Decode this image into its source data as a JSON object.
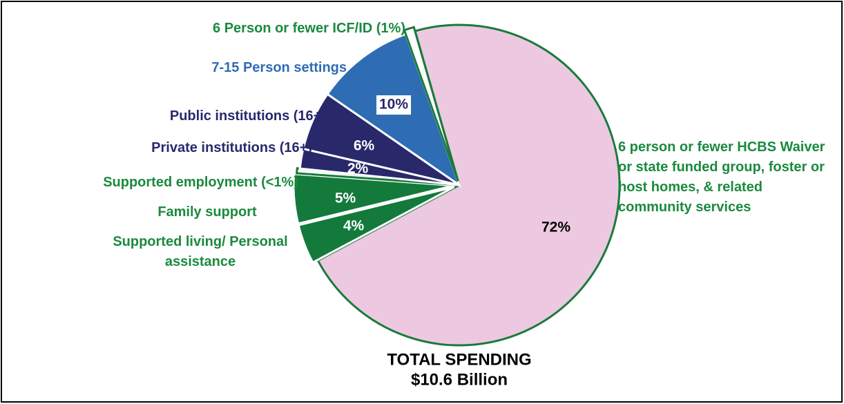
{
  "chart_data": {
    "type": "pie",
    "title": "TOTAL SPENDING",
    "subtitle": "$10.6 Billion",
    "categories": [
      "6 person or fewer HCBS Waiver or state funded group, foster or host homes, & related community services",
      "Supported living/ Personal assistance",
      "Family support",
      "Supported employment (<1%)",
      "Private institutions (16+)",
      "Public institutions (16+)",
      "7-15 Person settings",
      "6 Person or fewer ICF/ID (1%)"
    ],
    "values": [
      72,
      4,
      5,
      0.5,
      2,
      6,
      10,
      1
    ],
    "value_labels": [
      "72%",
      "4%",
      "5%",
      null,
      "2%",
      "6%",
      "10%",
      null
    ],
    "colors": [
      "#ecc9e1",
      "#137a3b",
      "#137a3b",
      "#ffffff",
      "#29286b",
      "#29286b",
      "#2e6db4",
      "#ffffff"
    ]
  }
}
